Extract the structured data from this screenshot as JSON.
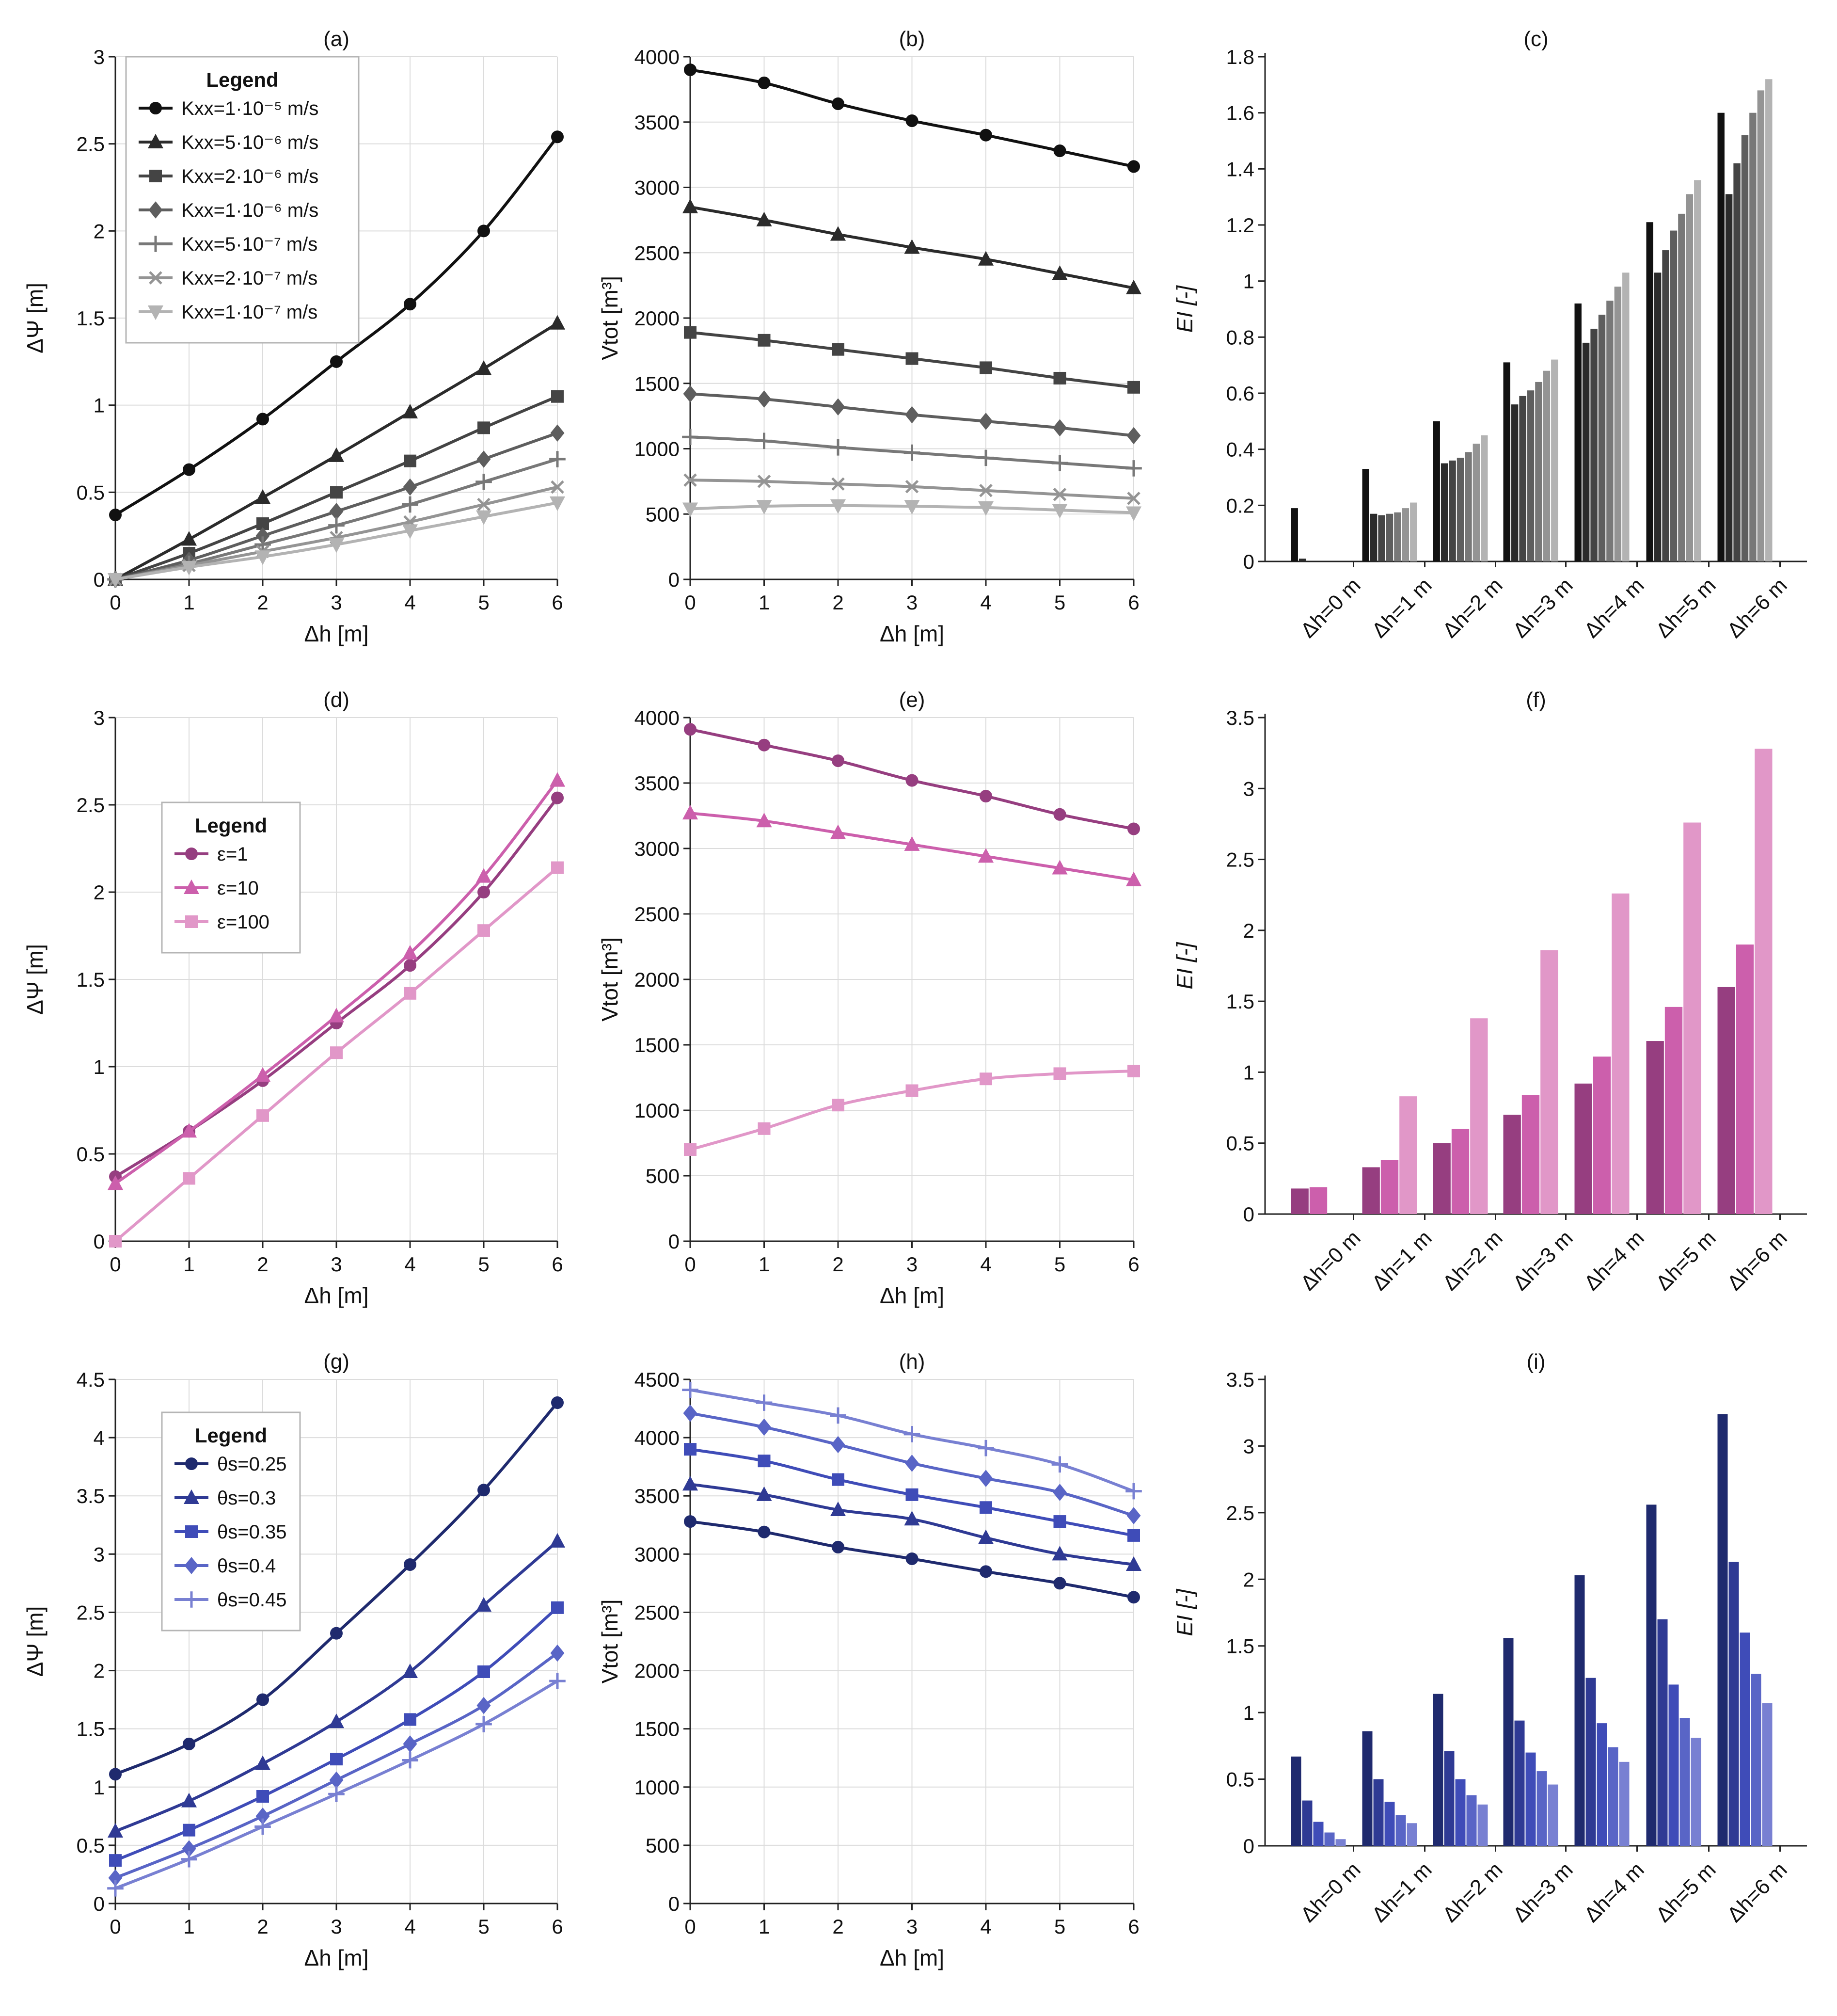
{
  "chart_data": [
    {
      "id": "a",
      "type": "line",
      "title": "(a)",
      "xlabel": "Δh [m]",
      "ylabel": "ΔΨ [m]",
      "x": [
        0,
        1,
        2,
        3,
        4,
        5,
        6
      ],
      "xlim": [
        0,
        6
      ],
      "ylim": [
        0,
        3
      ],
      "yticks": [
        "0",
        "0.5",
        "1",
        "1.5",
        "2",
        "2.5",
        "3"
      ],
      "grid": true,
      "legend": {
        "title": "Legend",
        "placement": "top-left"
      },
      "series": [
        {
          "name": "Kxx=1·10⁻⁵ m/s",
          "color": "#111111",
          "marker": "circle",
          "values": [
            0.37,
            0.63,
            0.92,
            1.25,
            1.58,
            2.0,
            2.54
          ]
        },
        {
          "name": "Kxx=5·10⁻⁶ m/s",
          "color": "#2b2b2b",
          "marker": "triangle",
          "values": [
            0.0,
            0.23,
            0.47,
            0.71,
            0.96,
            1.21,
            1.47
          ]
        },
        {
          "name": "Kxx=2·10⁻⁶ m/s",
          "color": "#444444",
          "marker": "square",
          "values": [
            0.0,
            0.15,
            0.32,
            0.5,
            0.68,
            0.87,
            1.05
          ]
        },
        {
          "name": "Kxx=1·10⁻⁶ m/s",
          "color": "#5e5e5e",
          "marker": "diamond",
          "values": [
            0.0,
            0.11,
            0.25,
            0.39,
            0.53,
            0.69,
            0.84
          ]
        },
        {
          "name": "Kxx=5·10⁻⁷ m/s",
          "color": "#787878",
          "marker": "plus",
          "values": [
            0.0,
            0.09,
            0.2,
            0.31,
            0.43,
            0.56,
            0.69
          ]
        },
        {
          "name": "Kxx=2·10⁻⁷ m/s",
          "color": "#949494",
          "marker": "x",
          "values": [
            0.0,
            0.08,
            0.16,
            0.24,
            0.33,
            0.43,
            0.53
          ]
        },
        {
          "name": "Kxx=1·10⁻⁷ m/s",
          "color": "#b3b3b3",
          "marker": "triangle-down",
          "values": [
            0.0,
            0.07,
            0.13,
            0.2,
            0.28,
            0.36,
            0.44
          ]
        }
      ]
    },
    {
      "id": "b",
      "type": "line",
      "title": "(b)",
      "xlabel": "Δh [m]",
      "ylabel": "Vtot [m³]",
      "x": [
        0,
        1,
        2,
        3,
        4,
        5,
        6
      ],
      "xlim": [
        0,
        6
      ],
      "ylim": [
        0,
        4000
      ],
      "yticks": [
        "0",
        "500",
        "1000",
        "1500",
        "2000",
        "2500",
        "3000",
        "3500",
        "4000"
      ],
      "grid": true,
      "series": [
        {
          "name": "Kxx=1·10⁻⁵ m/s",
          "color": "#111111",
          "marker": "circle",
          "values": [
            3900,
            3800,
            3640,
            3510,
            3400,
            3280,
            3160
          ]
        },
        {
          "name": "Kxx=5·10⁻⁶ m/s",
          "color": "#2b2b2b",
          "marker": "triangle",
          "values": [
            2850,
            2750,
            2640,
            2540,
            2450,
            2340,
            2230
          ]
        },
        {
          "name": "Kxx=2·10⁻⁶ m/s",
          "color": "#444444",
          "marker": "square",
          "values": [
            1890,
            1830,
            1760,
            1690,
            1620,
            1540,
            1470
          ]
        },
        {
          "name": "Kxx=1·10⁻⁶ m/s",
          "color": "#5e5e5e",
          "marker": "diamond",
          "values": [
            1420,
            1380,
            1320,
            1260,
            1210,
            1160,
            1100
          ]
        },
        {
          "name": "Kxx=5·10⁻⁷ m/s",
          "color": "#787878",
          "marker": "plus",
          "values": [
            1090,
            1060,
            1010,
            970,
            930,
            890,
            850
          ]
        },
        {
          "name": "Kxx=2·10⁻⁷ m/s",
          "color": "#949494",
          "marker": "x",
          "values": [
            760,
            750,
            730,
            710,
            680,
            650,
            620
          ]
        },
        {
          "name": "Kxx=1·10⁻⁷ m/s",
          "color": "#b3b3b3",
          "marker": "triangle-down",
          "values": [
            540,
            560,
            565,
            560,
            550,
            530,
            510
          ]
        }
      ]
    },
    {
      "id": "c",
      "type": "bar",
      "title": "(c)",
      "ylabel": "EI [-]",
      "ylim": [
        0,
        1.8
      ],
      "yticks": [
        "0",
        "0.2",
        "0.4",
        "0.6",
        "0.8",
        "1",
        "1.2",
        "1.4",
        "1.6",
        "1.8"
      ],
      "categories": [
        "Δh=0 m",
        "Δh=1 m",
        "Δh=2 m",
        "Δh=3 m",
        "Δh=4 m",
        "Δh=5 m",
        "Δh=6 m"
      ],
      "series": [
        {
          "name": "Kxx=1·10⁻⁵ m/s",
          "color": "#111111",
          "values": [
            0.19,
            0.33,
            0.5,
            0.71,
            0.92,
            1.21,
            1.6
          ]
        },
        {
          "name": "Kxx=5·10⁻⁶ m/s",
          "color": "#2b2b2b",
          "values": [
            0.01,
            0.17,
            0.35,
            0.56,
            0.78,
            1.03,
            1.31
          ]
        },
        {
          "name": "Kxx=2·10⁻⁶ m/s",
          "color": "#444444",
          "values": [
            0.0,
            0.165,
            0.36,
            0.59,
            0.83,
            1.11,
            1.42
          ]
        },
        {
          "name": "Kxx=1·10⁻⁶ m/s",
          "color": "#5e5e5e",
          "values": [
            0.0,
            0.17,
            0.37,
            0.61,
            0.88,
            1.18,
            1.52
          ]
        },
        {
          "name": "Kxx=5·10⁻⁷ m/s",
          "color": "#787878",
          "values": [
            0.0,
            0.175,
            0.39,
            0.64,
            0.93,
            1.24,
            1.6
          ]
        },
        {
          "name": "Kxx=2·10⁻⁷ m/s",
          "color": "#949494",
          "values": [
            0.0,
            0.19,
            0.42,
            0.68,
            0.98,
            1.31,
            1.68
          ]
        },
        {
          "name": "Kxx=1·10⁻⁷ m/s",
          "color": "#b3b3b3",
          "values": [
            0.0,
            0.21,
            0.45,
            0.72,
            1.03,
            1.36,
            1.72
          ]
        }
      ]
    },
    {
      "id": "d",
      "type": "line",
      "title": "(d)",
      "xlabel": "Δh [m]",
      "ylabel": "ΔΨ [m]",
      "x": [
        0,
        1,
        2,
        3,
        4,
        5,
        6
      ],
      "xlim": [
        0,
        6
      ],
      "ylim": [
        0,
        3
      ],
      "yticks": [
        "0",
        "0.5",
        "1",
        "1.5",
        "2",
        "2.5",
        "3"
      ],
      "grid": true,
      "legend": {
        "title": "Legend",
        "placement": "upper-left"
      },
      "series": [
        {
          "name": "ε=1",
          "color": "#963e80",
          "marker": "circle",
          "values": [
            0.37,
            0.63,
            0.92,
            1.25,
            1.58,
            2.0,
            2.54
          ]
        },
        {
          "name": "ε=10",
          "color": "#cc5fac",
          "marker": "triangle",
          "values": [
            0.33,
            0.63,
            0.95,
            1.29,
            1.65,
            2.09,
            2.64
          ]
        },
        {
          "name": "ε=100",
          "color": "#e197c8",
          "marker": "square",
          "values": [
            0.0,
            0.36,
            0.72,
            1.08,
            1.42,
            1.78,
            2.14
          ]
        }
      ]
    },
    {
      "id": "e",
      "type": "line",
      "title": "(e)",
      "xlabel": "Δh [m]",
      "ylabel": "Vtot [m³]",
      "x": [
        0,
        1,
        2,
        3,
        4,
        5,
        6
      ],
      "xlim": [
        0,
        6
      ],
      "ylim": [
        0,
        4000
      ],
      "yticks": [
        "0",
        "500",
        "1000",
        "1500",
        "2000",
        "2500",
        "3000",
        "3500",
        "4000"
      ],
      "grid": true,
      "series": [
        {
          "name": "ε=1",
          "color": "#963e80",
          "marker": "circle",
          "values": [
            3910,
            3790,
            3670,
            3520,
            3400,
            3260,
            3150
          ]
        },
        {
          "name": "ε=10",
          "color": "#cc5fac",
          "marker": "triangle",
          "values": [
            3270,
            3210,
            3120,
            3030,
            2940,
            2850,
            2760
          ]
        },
        {
          "name": "ε=100",
          "color": "#e197c8",
          "marker": "square",
          "values": [
            700,
            860,
            1040,
            1150,
            1240,
            1280,
            1300
          ]
        }
      ]
    },
    {
      "id": "f",
      "type": "bar",
      "title": "(f)",
      "ylabel": "EI [-]",
      "ylim": [
        0,
        3.5
      ],
      "yticks": [
        "0",
        "0.5",
        "1",
        "1.5",
        "2",
        "2.5",
        "3",
        "3.5"
      ],
      "categories": [
        "Δh=0 m",
        "Δh=1 m",
        "Δh=2 m",
        "Δh=3 m",
        "Δh=4 m",
        "Δh=5 m",
        "Δh=6 m"
      ],
      "series": [
        {
          "name": "ε=1",
          "color": "#963e80",
          "values": [
            0.18,
            0.33,
            0.5,
            0.7,
            0.92,
            1.22,
            1.6
          ]
        },
        {
          "name": "ε=10",
          "color": "#cc5fac",
          "values": [
            0.19,
            0.38,
            0.6,
            0.84,
            1.11,
            1.46,
            1.9
          ]
        },
        {
          "name": "ε=100",
          "color": "#e197c8",
          "values": [
            0.0,
            0.83,
            1.38,
            1.86,
            2.26,
            2.76,
            3.28
          ]
        }
      ]
    },
    {
      "id": "g",
      "type": "line",
      "title": "(g)",
      "xlabel": "Δh [m]",
      "ylabel": "ΔΨ [m]",
      "x": [
        0,
        1,
        2,
        3,
        4,
        5,
        6
      ],
      "xlim": [
        0,
        6
      ],
      "ylim": [
        0,
        4.5
      ],
      "yticks": [
        "0",
        "0.5",
        "1",
        "1.5",
        "2",
        "2.5",
        "3",
        "3.5",
        "4",
        "4.5"
      ],
      "grid": true,
      "legend": {
        "title": "Legend",
        "placement": "upper-left"
      },
      "series": [
        {
          "name": "θs=0.25",
          "color": "#1f2a6e",
          "marker": "circle",
          "values": [
            1.11,
            1.37,
            1.75,
            2.32,
            2.91,
            3.55,
            4.3
          ]
        },
        {
          "name": "θs=0.3",
          "color": "#2f3a94",
          "marker": "triangle",
          "values": [
            0.62,
            0.88,
            1.2,
            1.56,
            1.99,
            2.56,
            3.11
          ]
        },
        {
          "name": "θs=0.35",
          "color": "#3f4cb8",
          "marker": "square",
          "values": [
            0.37,
            0.63,
            0.92,
            1.24,
            1.58,
            1.99,
            2.54
          ]
        },
        {
          "name": "θs=0.4",
          "color": "#5965c6",
          "marker": "diamond",
          "values": [
            0.22,
            0.47,
            0.75,
            1.06,
            1.37,
            1.7,
            2.15
          ]
        },
        {
          "name": "θs=0.45",
          "color": "#7880d2",
          "marker": "plus",
          "values": [
            0.13,
            0.38,
            0.66,
            0.94,
            1.23,
            1.54,
            1.91
          ]
        }
      ]
    },
    {
      "id": "h",
      "type": "line",
      "title": "(h)",
      "xlabel": "Δh [m]",
      "ylabel": "Vtot [m³]",
      "x": [
        0,
        1,
        2,
        3,
        4,
        5,
        6
      ],
      "xlim": [
        0,
        6
      ],
      "ylim": [
        0,
        4500
      ],
      "yticks": [
        "0",
        "500",
        "1000",
        "1500",
        "2000",
        "2500",
        "3000",
        "3500",
        "4000",
        "4500"
      ],
      "grid": true,
      "series": [
        {
          "name": "θs=0.25",
          "color": "#1f2a6e",
          "marker": "circle",
          "values": [
            3280,
            3190,
            3060,
            2960,
            2850,
            2750,
            2630
          ]
        },
        {
          "name": "θs=0.3",
          "color": "#2f3a94",
          "marker": "triangle",
          "values": [
            3600,
            3510,
            3380,
            3300,
            3140,
            3000,
            2910
          ]
        },
        {
          "name": "θs=0.35",
          "color": "#3f4cb8",
          "marker": "square",
          "values": [
            3900,
            3800,
            3640,
            3510,
            3400,
            3280,
            3160
          ]
        },
        {
          "name": "θs=0.4",
          "color": "#5965c6",
          "marker": "diamond",
          "values": [
            4210,
            4090,
            3940,
            3780,
            3650,
            3530,
            3330
          ]
        },
        {
          "name": "θs=0.45",
          "color": "#7880d2",
          "marker": "plus",
          "values": [
            4410,
            4300,
            4190,
            4030,
            3910,
            3770,
            3540
          ]
        }
      ]
    },
    {
      "id": "i",
      "type": "bar",
      "title": "(i)",
      "ylabel": "EI [-]",
      "ylim": [
        0,
        3.5
      ],
      "yticks": [
        "0",
        "0.5",
        "1",
        "1.5",
        "2",
        "2.5",
        "3",
        "3.5"
      ],
      "categories": [
        "Δh=0 m",
        "Δh=1 m",
        "Δh=2 m",
        "Δh=3 m",
        "Δh=4 m",
        "Δh=5 m",
        "Δh=6 m"
      ],
      "series": [
        {
          "name": "θs=0.25",
          "color": "#1f2a6e",
          "values": [
            0.67,
            0.86,
            1.14,
            1.56,
            2.03,
            2.56,
            3.24
          ]
        },
        {
          "name": "θs=0.3",
          "color": "#2f3a94",
          "values": [
            0.34,
            0.5,
            0.71,
            0.94,
            1.26,
            1.7,
            2.13
          ]
        },
        {
          "name": "θs=0.35",
          "color": "#3f4cb8",
          "values": [
            0.18,
            0.33,
            0.5,
            0.7,
            0.92,
            1.21,
            1.6
          ]
        },
        {
          "name": "θs=0.4",
          "color": "#5965c6",
          "values": [
            0.1,
            0.23,
            0.38,
            0.56,
            0.74,
            0.96,
            1.29
          ]
        },
        {
          "name": "θs=0.45",
          "color": "#7880d2",
          "values": [
            0.05,
            0.17,
            0.31,
            0.46,
            0.63,
            0.81,
            1.07
          ]
        }
      ]
    }
  ]
}
